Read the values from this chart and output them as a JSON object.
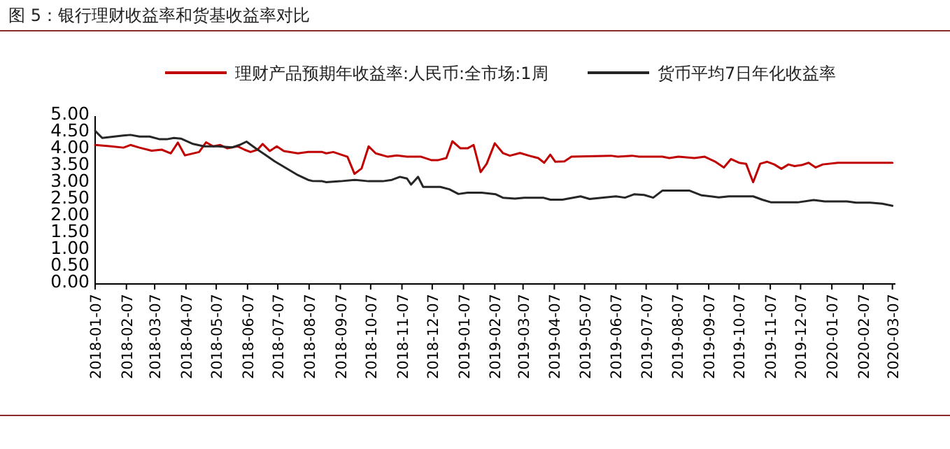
{
  "chart_data": {
    "type": "line",
    "title": "图 5：银行理财收益率和货基收益率对比",
    "legend": "top",
    "grid": false,
    "marker": "none",
    "line_style": "solid",
    "xlim": [
      "2018-01-07",
      "2020-03-10"
    ],
    "xticks": [
      "2018-01-07",
      "2018-02-07",
      "2018-03-07",
      "2018-04-07",
      "2018-05-07",
      "2018-06-07",
      "2018-07-07",
      "2018-08-07",
      "2018-09-07",
      "2018-10-07",
      "2018-11-07",
      "2018-12-07",
      "2019-01-07",
      "2019-02-07",
      "2019-03-07",
      "2019-04-07",
      "2019-05-07",
      "2019-06-07",
      "2019-07-07",
      "2019-08-07",
      "2019-09-07",
      "2019-10-07",
      "2019-11-07",
      "2019-12-07",
      "2020-01-07",
      "2020-02-07",
      "2020-03-07"
    ],
    "ylim": [
      0,
      5
    ],
    "yticks": [
      {
        "value": 0,
        "label": "0.00"
      },
      {
        "value": 0.5,
        "label": "0.50"
      },
      {
        "value": 1,
        "label": "1.00"
      },
      {
        "value": 1.5,
        "label": "1.50"
      },
      {
        "value": 2,
        "label": "2.00"
      },
      {
        "value": 2.5,
        "label": "2.50"
      },
      {
        "value": 3,
        "label": "3.00"
      },
      {
        "value": 3.5,
        "label": "3.50"
      },
      {
        "value": 4,
        "label": "4.00"
      },
      {
        "value": 4.5,
        "label": "4.50"
      },
      {
        "value": 5,
        "label": "5.00"
      }
    ],
    "series": [
      {
        "name": "理财产品预期年收益率:人民币:全市场:1周",
        "color": "#c00000",
        "x": [
          "2018-01-07",
          "2018-01-23",
          "2018-02-04",
          "2018-02-11",
          "2018-02-20",
          "2018-03-04",
          "2018-03-14",
          "2018-03-23",
          "2018-03-30",
          "2018-04-06",
          "2018-04-20",
          "2018-04-27",
          "2018-05-04",
          "2018-05-11",
          "2018-05-18",
          "2018-05-28",
          "2018-06-04",
          "2018-06-10",
          "2018-06-17",
          "2018-06-22",
          "2018-06-29",
          "2018-07-06",
          "2018-07-13",
          "2018-07-27",
          "2018-08-06",
          "2018-08-20",
          "2018-08-24",
          "2018-08-31",
          "2018-09-14",
          "2018-09-21",
          "2018-09-28",
          "2018-10-05",
          "2018-10-12",
          "2018-10-24",
          "2018-11-02",
          "2018-11-12",
          "2018-11-26",
          "2018-12-06",
          "2018-12-13",
          "2018-12-21",
          "2018-12-27",
          "2019-01-04",
          "2019-01-11",
          "2019-01-17",
          "2019-01-24",
          "2019-01-30",
          "2019-02-07",
          "2019-02-15",
          "2019-02-22",
          "2019-03-04",
          "2019-03-13",
          "2019-03-22",
          "2019-03-28",
          "2019-04-03",
          "2019-04-08",
          "2019-04-17",
          "2019-04-24",
          "2019-06-02",
          "2019-06-09",
          "2019-06-23",
          "2019-06-30",
          "2019-07-23",
          "2019-07-30",
          "2019-08-08",
          "2019-08-24",
          "2019-09-03",
          "2019-09-13",
          "2019-09-22",
          "2019-09-29",
          "2019-10-07",
          "2019-10-14",
          "2019-10-21",
          "2019-10-28",
          "2019-11-04",
          "2019-11-11",
          "2019-11-18",
          "2019-11-25",
          "2019-12-01",
          "2019-12-08",
          "2019-12-15",
          "2019-12-22",
          "2019-12-29",
          "2020-01-13",
          "2020-03-07"
        ],
        "values": [
          4.14,
          4.1,
          4.06,
          4.14,
          4.06,
          3.97,
          4.0,
          3.89,
          4.21,
          3.83,
          3.93,
          4.22,
          4.1,
          4.14,
          4.04,
          4.1,
          4.0,
          3.93,
          4.0,
          4.17,
          3.96,
          4.1,
          3.96,
          3.89,
          3.93,
          3.93,
          3.89,
          3.93,
          3.79,
          3.28,
          3.44,
          4.1,
          3.89,
          3.79,
          3.83,
          3.79,
          3.79,
          3.69,
          3.69,
          3.75,
          4.25,
          4.04,
          4.04,
          4.14,
          3.33,
          3.58,
          4.19,
          3.9,
          3.82,
          3.9,
          3.82,
          3.75,
          3.61,
          3.85,
          3.64,
          3.65,
          3.79,
          3.82,
          3.79,
          3.82,
          3.79,
          3.79,
          3.75,
          3.79,
          3.75,
          3.79,
          3.65,
          3.47,
          3.72,
          3.61,
          3.58,
          3.03,
          3.58,
          3.64,
          3.56,
          3.43,
          3.56,
          3.51,
          3.54,
          3.61,
          3.47,
          3.56,
          3.61,
          3.61
        ]
      },
      {
        "name": "货币平均7日年化收益率",
        "color": "#262626",
        "x": [
          "2018-01-07",
          "2018-01-14",
          "2018-01-26",
          "2018-02-04",
          "2018-02-11",
          "2018-02-20",
          "2018-03-02",
          "2018-03-12",
          "2018-03-19",
          "2018-03-26",
          "2018-04-02",
          "2018-04-14",
          "2018-04-25",
          "2018-05-09",
          "2018-05-23",
          "2018-05-30",
          "2018-06-06",
          "2018-06-15",
          "2018-06-24",
          "2018-07-04",
          "2018-07-13",
          "2018-07-27",
          "2018-08-06",
          "2018-08-10",
          "2018-08-20",
          "2018-08-24",
          "2018-09-07",
          "2018-09-21",
          "2018-10-05",
          "2018-10-19",
          "2018-10-28",
          "2018-11-05",
          "2018-11-12",
          "2018-11-16",
          "2018-11-23",
          "2018-11-28",
          "2018-12-15",
          "2018-12-24",
          "2019-01-02",
          "2019-01-11",
          "2019-01-25",
          "2019-02-08",
          "2019-02-15",
          "2019-02-27",
          "2019-03-08",
          "2019-03-27",
          "2019-04-03",
          "2019-04-15",
          "2019-05-03",
          "2019-05-12",
          "2019-05-24",
          "2019-06-07",
          "2019-06-16",
          "2019-06-25",
          "2019-07-05",
          "2019-07-14",
          "2019-07-23",
          "2019-08-19",
          "2019-08-31",
          "2019-09-17",
          "2019-09-27",
          "2019-10-21",
          "2019-10-30",
          "2019-11-08",
          "2019-12-04",
          "2019-12-20",
          "2019-12-31",
          "2020-01-22",
          "2020-01-31",
          "2020-02-14",
          "2020-02-26",
          "2020-03-07"
        ],
        "values": [
          4.56,
          4.35,
          4.39,
          4.42,
          4.44,
          4.39,
          4.39,
          4.31,
          4.31,
          4.35,
          4.33,
          4.17,
          4.1,
          4.1,
          4.07,
          4.14,
          4.24,
          4.04,
          3.86,
          3.65,
          3.49,
          3.24,
          3.1,
          3.07,
          3.06,
          3.03,
          3.06,
          3.1,
          3.06,
          3.06,
          3.1,
          3.19,
          3.14,
          2.96,
          3.19,
          2.89,
          2.89,
          2.82,
          2.68,
          2.72,
          2.72,
          2.67,
          2.57,
          2.54,
          2.57,
          2.57,
          2.51,
          2.51,
          2.61,
          2.53,
          2.57,
          2.61,
          2.57,
          2.67,
          2.65,
          2.57,
          2.78,
          2.78,
          2.64,
          2.58,
          2.61,
          2.61,
          2.51,
          2.43,
          2.43,
          2.5,
          2.46,
          2.46,
          2.42,
          2.42,
          2.39,
          2.33
        ]
      }
    ]
  }
}
